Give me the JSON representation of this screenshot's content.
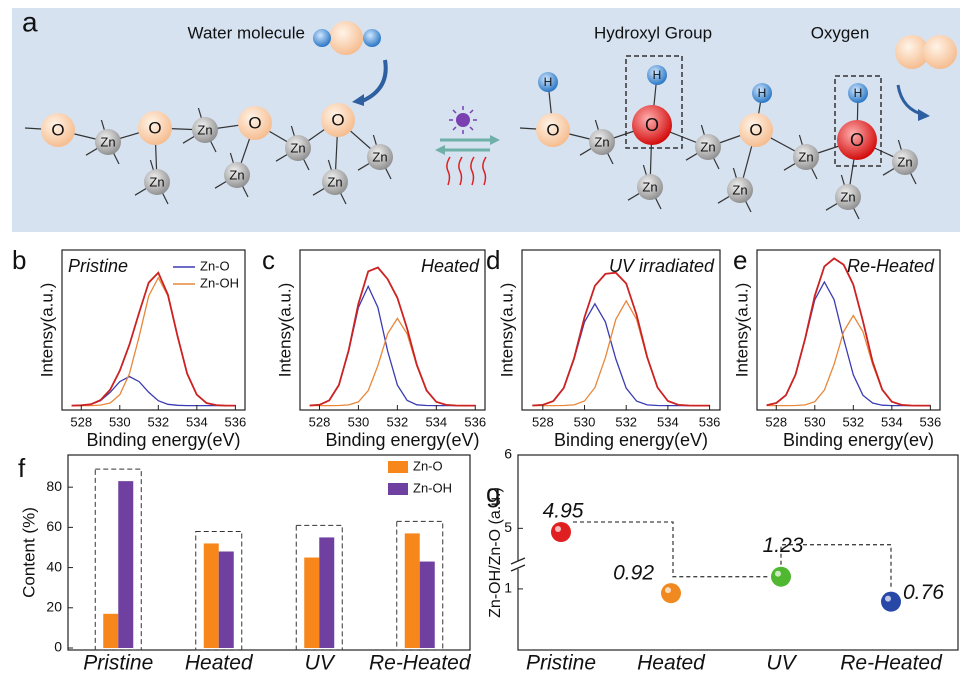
{
  "diagram": {
    "panel": "a",
    "labels": [
      "Water molecule",
      "Hydroxyl Group",
      "Oxygen"
    ],
    "atoms": [
      "O",
      "Zn",
      "O",
      "Zn",
      "Zn",
      "O",
      "Zn",
      "Zn",
      "O",
      "Zn",
      "Zn",
      "O",
      "H",
      "Zn",
      "O",
      "H",
      "Zn",
      "Zn",
      "O",
      "H",
      "Zn",
      "Zn",
      "O",
      "H",
      "Zn",
      "Zn"
    ]
  },
  "chart_data": [
    {
      "type": "line",
      "panel": "b",
      "title": "Pristine",
      "xlabel": "Binding energy(eV)",
      "ylabel": "Intensy(a.u.)",
      "xlim": [
        527,
        536.5
      ],
      "xticks": [
        528,
        530,
        532,
        534,
        536
      ],
      "ylim": [
        0,
        1.1
      ],
      "legend": "upper right",
      "x": [
        527.5,
        528,
        528.5,
        529,
        529.5,
        530,
        530.5,
        531,
        531.5,
        532,
        532.5,
        533,
        533.5,
        534,
        534.5,
        535,
        535.5,
        536
      ],
      "series": [
        {
          "name": "Zn-O",
          "color": "#3b3bb3",
          "values": [
            0.03,
            0.032,
            0.039,
            0.064,
            0.122,
            0.195,
            0.23,
            0.195,
            0.122,
            0.064,
            0.039,
            0.032,
            0.03,
            0.03,
            0.03,
            0.03,
            0.03,
            0.03
          ]
        },
        {
          "name": "Zn-OH",
          "color": "#e8873a",
          "values": [
            0.03,
            0.03,
            0.03,
            0.034,
            0.048,
            0.105,
            0.249,
            0.504,
            0.784,
            0.91,
            0.784,
            0.504,
            0.249,
            0.105,
            0.048,
            0.034,
            0.03,
            0.03
          ]
        },
        {
          "color": "#cc2222",
          "values": [
            0.03,
            0.032,
            0.039,
            0.068,
            0.14,
            0.27,
            0.449,
            0.669,
            0.876,
            0.944,
            0.793,
            0.506,
            0.249,
            0.105,
            0.048,
            0.034,
            0.03,
            0.03
          ]
        }
      ]
    },
    {
      "type": "line",
      "panel": "c",
      "title": "Heated",
      "xlabel": "Binding energy(eV)",
      "ylabel": "Intensy(a.u.)",
      "xlim": [
        527,
        536.5
      ],
      "xticks": [
        528,
        530,
        532,
        534,
        536
      ],
      "ylim": [
        0,
        1.1
      ],
      "x": [
        527.5,
        528,
        528.5,
        529,
        529.5,
        530,
        530.5,
        531,
        531.5,
        532,
        532.5,
        533,
        533.5,
        534,
        534.5,
        535,
        535.5,
        536
      ],
      "series": [
        {
          "color": "#3b3bb3",
          "values": [
            0.031,
            0.036,
            0.066,
            0.171,
            0.406,
            0.705,
            0.85,
            0.705,
            0.406,
            0.171,
            0.066,
            0.036,
            0.031,
            0.03,
            0.03,
            0.03,
            0.03,
            0.03
          ]
        },
        {
          "color": "#e8873a",
          "values": [
            0.03,
            0.03,
            0.03,
            0.031,
            0.035,
            0.056,
            0.133,
            0.305,
            0.524,
            0.63,
            0.524,
            0.305,
            0.133,
            0.056,
            0.035,
            0.031,
            0.03,
            0.03
          ]
        },
        {
          "color": "#cc2222",
          "values": [
            0.031,
            0.036,
            0.066,
            0.172,
            0.411,
            0.731,
            0.953,
            0.98,
            0.9,
            0.771,
            0.56,
            0.311,
            0.134,
            0.056,
            0.035,
            0.031,
            0.03,
            0.03
          ]
        }
      ]
    },
    {
      "type": "line",
      "panel": "d",
      "title": "UV irradiated",
      "xlabel": "Binding energy(eV)",
      "ylabel": "Intensy(a.u.)",
      "xlim": [
        527,
        536.5
      ],
      "xticks": [
        528,
        530,
        532,
        534,
        536
      ],
      "ylim": [
        0,
        1.1
      ],
      "x": [
        527.5,
        528,
        528.5,
        529,
        529.5,
        530,
        530.5,
        531,
        531.5,
        532,
        532.5,
        533,
        533.5,
        534,
        534.5,
        535,
        535.5,
        536
      ],
      "series": [
        {
          "color": "#3b3bb3",
          "values": [
            0.031,
            0.035,
            0.061,
            0.15,
            0.351,
            0.606,
            0.73,
            0.606,
            0.351,
            0.15,
            0.061,
            0.035,
            0.031,
            0.03,
            0.03,
            0.03,
            0.03,
            0.03
          ]
        },
        {
          "color": "#e8873a",
          "values": [
            0.03,
            0.03,
            0.03,
            0.031,
            0.035,
            0.062,
            0.154,
            0.36,
            0.623,
            0.75,
            0.623,
            0.36,
            0.154,
            0.062,
            0.035,
            0.031,
            0.03,
            0.03
          ]
        },
        {
          "color": "#cc2222",
          "values": [
            0.031,
            0.035,
            0.061,
            0.151,
            0.356,
            0.638,
            0.854,
            0.936,
            0.944,
            0.87,
            0.654,
            0.365,
            0.155,
            0.062,
            0.035,
            0.031,
            0.03,
            0.03
          ]
        }
      ]
    },
    {
      "type": "line",
      "panel": "e",
      "title": "Re-Heated",
      "xlabel": "Binding energy(ev)",
      "ylabel": "Intensy(a.u.)",
      "xlim": [
        527,
        536.5
      ],
      "xticks": [
        528,
        530,
        532,
        534,
        536
      ],
      "ylim": [
        0,
        1.1
      ],
      "x": [
        527.5,
        528,
        528.5,
        529,
        529.5,
        530,
        530.5,
        531,
        531.5,
        532,
        532.5,
        533,
        533.5,
        534,
        534.5,
        535,
        535.5,
        536
      ],
      "series": [
        {
          "color": "#3b3bb3",
          "values": [
            0.033,
            0.048,
            0.102,
            0.242,
            0.488,
            0.758,
            0.88,
            0.758,
            0.488,
            0.242,
            0.102,
            0.048,
            0.033,
            0.03,
            0.03,
            0.03,
            0.03,
            0.03
          ]
        },
        {
          "color": "#e8873a",
          "values": [
            0.03,
            0.03,
            0.03,
            0.031,
            0.035,
            0.057,
            0.137,
            0.314,
            0.54,
            0.65,
            0.54,
            0.314,
            0.137,
            0.057,
            0.035,
            0.031,
            0.03,
            0.03
          ]
        },
        {
          "color": "#cc2222",
          "values": [
            0.033,
            0.048,
            0.102,
            0.243,
            0.493,
            0.785,
            0.987,
            1.042,
            0.998,
            0.862,
            0.612,
            0.332,
            0.14,
            0.057,
            0.035,
            0.031,
            0.03,
            0.03
          ]
        }
      ]
    },
    {
      "type": "bar",
      "panel": "f",
      "ylabel": "Content (%)",
      "ylim": [
        -1,
        96
      ],
      "yticks": [
        0,
        20,
        40,
        60,
        80
      ],
      "legend": "upper right",
      "categories": [
        "Pristine",
        "Heated",
        "UV",
        "Re-Heated"
      ],
      "series": [
        {
          "name": "Zn-O",
          "color": "#f7861b",
          "values": [
            17,
            52,
            45,
            57
          ]
        },
        {
          "name": "Zn-OH",
          "color": "#7040a0",
          "values": [
            83,
            48,
            55,
            43
          ]
        }
      ]
    },
    {
      "type": "scatter",
      "panel": "g",
      "ylabel": "Zn-OH/Zn-O (a.u.)",
      "ylim": [
        -0.15,
        6
      ],
      "ybreak": [
        1.45,
        4.5
      ],
      "yticks": [
        1,
        5,
        6
      ],
      "categories": [
        "Pristine",
        "Heated",
        "UV",
        "Re-Heated"
      ],
      "values": [
        4.95,
        0.92,
        1.23,
        0.76
      ],
      "colors": [
        "#e02020",
        "#f08a20",
        "#50b830",
        "#2848a8"
      ]
    }
  ]
}
